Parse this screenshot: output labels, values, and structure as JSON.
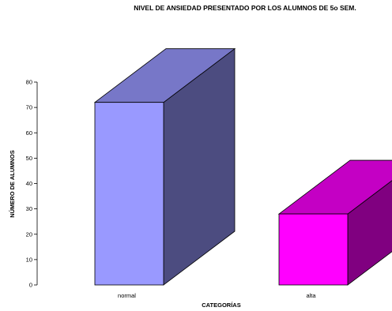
{
  "chart_data": {
    "type": "bar",
    "title": "NIVEL DE ANSIEDAD PRESENTADO POR LOS ALUMNOS DE 5o SEM.",
    "xlabel": "CATEGORÍAS",
    "ylabel": "NÚMERO DE ALUMNOS",
    "categories": [
      "normal",
      "alta"
    ],
    "values": [
      72,
      28
    ],
    "ylim": [
      0,
      80
    ],
    "yticks": [
      "0",
      "10",
      "20",
      "30",
      "40",
      "50",
      "60",
      "70",
      "80"
    ],
    "grid": false,
    "style": "3d",
    "colors": [
      {
        "front": "#9999ff",
        "top": "#7777c8",
        "side": "#4c4c80"
      },
      {
        "front": "#ff00ff",
        "top": "#c400c4",
        "side": "#800080"
      }
    ]
  }
}
